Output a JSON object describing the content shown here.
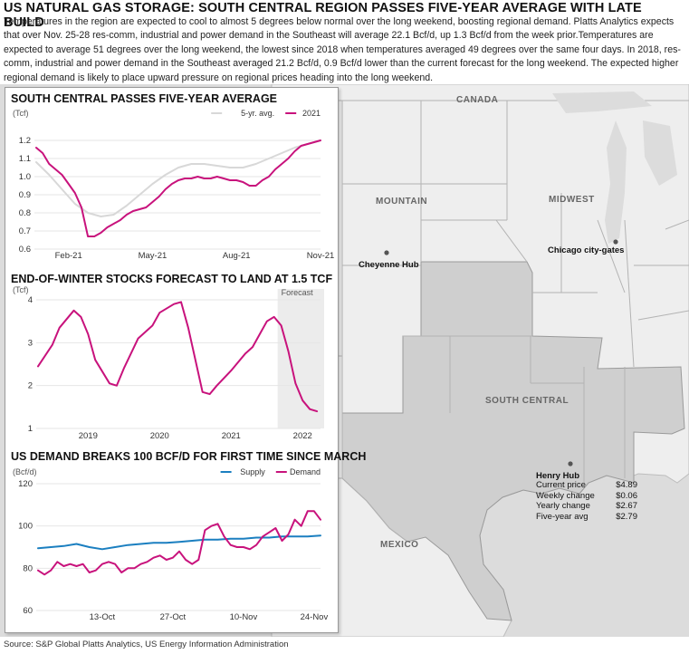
{
  "header": {
    "title": "US NATURAL GAS STORAGE: SOUTH CENTRAL REGION PASSES FIVE-YEAR AVERAGE WITH LATE BUILD",
    "description": "Temperatures in the region are expected to cool to almost 5 degrees below normal over the long weekend, boosting regional demand. Platts Analytics expects that over Nov. 25-28 res-comm, industrial and power demand in the Southeast will average 22.1 Bcf/d, up 1.3 Bcf/d from the week prior.Temperatures are expected to average 51 degrees over the long weekend, the lowest since 2018 when temperatures averaged 49 degrees over the same four days. In 2018, res-comm, industrial and power demand in the Southeast averaged 21.2 Bcf/d, 0.9 Bcf/d lower than the current forecast for the long weekend. The expected higher regional demand is likely to place upward pressure on regional prices heading into the long weekend."
  },
  "map": {
    "regions": [
      "CANADA",
      "MOUNTAIN",
      "MIDWEST",
      "SOUTH CENTRAL",
      "MEXICO"
    ],
    "hubs": {
      "cheyenne": "Cheyenne Hub",
      "chicago": "Chicago city-gates",
      "henry": "Henry Hub"
    },
    "henry_hub_stats": [
      {
        "label": "Current price",
        "value": "$4.89"
      },
      {
        "label": "Weekly change",
        "value": "$0.06"
      },
      {
        "label": "Yearly change",
        "value": "$2.67"
      },
      {
        "label": "Five-year avg",
        "value": "$2.79"
      }
    ],
    "colors": {
      "highlight": "#cfcfcf",
      "land": "#eeeeee",
      "water": "#dcdcdc"
    }
  },
  "source": "Source: S&P Global Platts Analytics, US Energy Information Administration",
  "colors": {
    "primary": "#c8127c",
    "secondary": "#d8d8d8",
    "supply": "#1b7fc0",
    "forecast_shade": "#ececec"
  },
  "chart_data": [
    {
      "type": "line",
      "title": "SOUTH CENTRAL PASSES FIVE-YEAR AVERAGE",
      "ylabel": "(Tcf)",
      "ylim": [
        0.6,
        1.2
      ],
      "yticks": [
        0.6,
        0.7,
        0.8,
        0.9,
        1.0,
        1.1,
        1.2
      ],
      "ytick_labels": [
        "0.6",
        "0.7",
        "0.8",
        "0.9",
        "1.0",
        "1.1",
        "1.2"
      ],
      "xlim": [
        0,
        44
      ],
      "xticks": [
        {
          "x": 5,
          "label": "Feb-21"
        },
        {
          "x": 18,
          "label": "May-21"
        },
        {
          "x": 31,
          "label": "Aug-21"
        },
        {
          "x": 44,
          "label": "Nov-21"
        }
      ],
      "legend": "top-right",
      "series": [
        {
          "name": "5-yr. avg.",
          "color": "#d8d8d8",
          "x": [
            0,
            2,
            4,
            6,
            8,
            10,
            12,
            14,
            16,
            18,
            20,
            22,
            24,
            26,
            28,
            30,
            32,
            34,
            36,
            38,
            40,
            42,
            44
          ],
          "y": [
            1.08,
            1.01,
            0.93,
            0.85,
            0.8,
            0.78,
            0.79,
            0.84,
            0.9,
            0.96,
            1.01,
            1.05,
            1.07,
            1.07,
            1.06,
            1.05,
            1.05,
            1.07,
            1.1,
            1.13,
            1.16,
            1.18,
            1.2
          ]
        },
        {
          "name": "2021",
          "color": "#c8127c",
          "x": [
            0,
            1,
            2,
            3,
            4,
            5,
            6,
            7,
            8,
            9,
            10,
            11,
            12,
            13,
            14,
            15,
            16,
            17,
            18,
            19,
            20,
            21,
            22,
            23,
            24,
            25,
            26,
            27,
            28,
            29,
            30,
            31,
            32,
            33,
            34,
            35,
            36,
            37,
            38,
            39,
            40,
            41,
            42,
            43,
            44
          ],
          "y": [
            1.16,
            1.13,
            1.07,
            1.04,
            1.01,
            0.96,
            0.91,
            0.83,
            0.67,
            0.67,
            0.69,
            0.72,
            0.74,
            0.76,
            0.79,
            0.81,
            0.82,
            0.83,
            0.86,
            0.89,
            0.93,
            0.96,
            0.98,
            0.99,
            0.99,
            1.0,
            0.99,
            0.99,
            1.0,
            0.99,
            0.98,
            0.98,
            0.97,
            0.95,
            0.95,
            0.98,
            1.0,
            1.04,
            1.07,
            1.1,
            1.14,
            1.17,
            1.18,
            1.19,
            1.2
          ]
        }
      ]
    },
    {
      "type": "line",
      "title": "END-OF-WINTER STOCKS FORECAST TO LAND AT 1.5 TCF",
      "ylabel": "(Tcf)",
      "ylim": [
        1,
        4
      ],
      "yticks": [
        1,
        2,
        3,
        4
      ],
      "ytick_labels": [
        "1",
        "2",
        "3",
        "4"
      ],
      "xlim": [
        0,
        39.5
      ],
      "xticks": [
        {
          "x": 7,
          "label": "2019"
        },
        {
          "x": 17,
          "label": "2020"
        },
        {
          "x": 27,
          "label": "2021"
        },
        {
          "x": 37,
          "label": "2022"
        }
      ],
      "forecast_label": "Forecast",
      "forecast_start": 33.5,
      "series": [
        {
          "name": "",
          "color": "#c8127c",
          "x": [
            0,
            2,
            3,
            5,
            6,
            7,
            8,
            10,
            11,
            12,
            14,
            16,
            17,
            19,
            20,
            21,
            23,
            24,
            25,
            27,
            28,
            29,
            30,
            31,
            32,
            33,
            34,
            35,
            36,
            37,
            38,
            39
          ],
          "y": [
            2.45,
            2.95,
            3.35,
            3.75,
            3.6,
            3.2,
            2.6,
            2.05,
            2.0,
            2.4,
            3.1,
            3.4,
            3.7,
            3.9,
            3.95,
            3.35,
            1.85,
            1.8,
            2.0,
            2.35,
            2.55,
            2.75,
            2.9,
            3.2,
            3.5,
            3.6,
            3.4,
            2.8,
            2.05,
            1.65,
            1.45,
            1.4
          ]
        }
      ]
    },
    {
      "type": "line",
      "title": "US DEMAND BREAKS 100 BCF/D FOR FIRST TIME SINCE MARCH",
      "ylabel": "(Bcf/d)",
      "ylim": [
        60,
        120
      ],
      "yticks": [
        60,
        80,
        100,
        120
      ],
      "ytick_labels": [
        "60",
        "80",
        "100",
        "120"
      ],
      "xlim": [
        0,
        44
      ],
      "xticks": [
        {
          "x": 10,
          "label": "13-Oct"
        },
        {
          "x": 21,
          "label": "27-Oct"
        },
        {
          "x": 32,
          "label": "10-Nov"
        },
        {
          "x": 43,
          "label": "24-Nov"
        }
      ],
      "legend": "top-right",
      "series": [
        {
          "name": "Supply",
          "color": "#1b7fc0",
          "x": [
            0,
            2,
            4,
            6,
            8,
            10,
            12,
            14,
            16,
            18,
            20,
            22,
            24,
            26,
            28,
            30,
            32,
            34,
            36,
            38,
            40,
            42,
            44
          ],
          "y": [
            89.5,
            90,
            90.5,
            91.5,
            90,
            89,
            90,
            91,
            91.5,
            92,
            92,
            92.5,
            93,
            93.5,
            93.5,
            94,
            94,
            94.5,
            94.5,
            95,
            95,
            95,
            95.5
          ]
        },
        {
          "name": "Demand",
          "color": "#c8127c",
          "x": [
            0,
            1,
            2,
            3,
            4,
            5,
            6,
            7,
            8,
            9,
            10,
            11,
            12,
            13,
            14,
            15,
            16,
            17,
            18,
            19,
            20,
            21,
            22,
            23,
            24,
            25,
            26,
            27,
            28,
            29,
            30,
            31,
            32,
            33,
            34,
            35,
            36,
            37,
            38,
            39,
            40,
            41,
            42,
            43,
            44
          ],
          "y": [
            79,
            77,
            79,
            83,
            81,
            82,
            81,
            82,
            78,
            79,
            82,
            83,
            82,
            78,
            80,
            80,
            82,
            83,
            85,
            86,
            84,
            85,
            88,
            84,
            82,
            84,
            98,
            100,
            101,
            95,
            91,
            90,
            90,
            89,
            91,
            95,
            97,
            99,
            93,
            96,
            103,
            100,
            107,
            107,
            103
          ]
        }
      ]
    }
  ]
}
